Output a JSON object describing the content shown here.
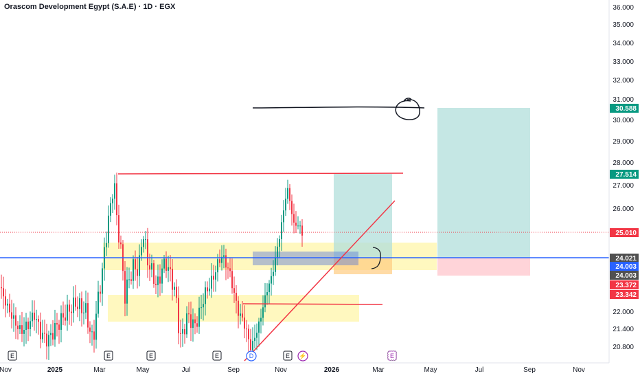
{
  "header": {
    "title": "Orascom Development Egypt (S.A.E) · 1D · EGX"
  },
  "chart_data": {
    "type": "candlestick",
    "title": "Orascom Development Egypt (S.A.E) · 1D · EGX",
    "y_axis": {
      "ticks": [
        {
          "value": 36,
          "label": "36.000"
        },
        {
          "value": 35,
          "label": "35.000"
        },
        {
          "value": 34,
          "label": "34.000"
        },
        {
          "value": 33,
          "label": "33.000"
        },
        {
          "value": 32,
          "label": "32.000"
        },
        {
          "value": 31,
          "label": "31.000"
        },
        {
          "value": 30,
          "label": "30.000"
        },
        {
          "value": 29,
          "label": "29.000"
        },
        {
          "value": 28,
          "label": "28.000"
        },
        {
          "value": 27,
          "label": "27.000"
        },
        {
          "value": 26,
          "label": "26.000"
        },
        {
          "value": 22,
          "label": "22.000"
        },
        {
          "value": 21.4,
          "label": "21.400"
        },
        {
          "value": 20.8,
          "label": "20.800"
        }
      ]
    },
    "x_axis": {
      "ticks": [
        "Nov",
        "2025",
        "Mar",
        "May",
        "Jul",
        "Sep",
        "Nov",
        "2026",
        "Mar",
        "May",
        "Jul",
        "Sep",
        "Nov"
      ]
    },
    "price_badges": [
      {
        "label": "30.588",
        "color": "#089981"
      },
      {
        "label": "27.514",
        "color": "#089981"
      },
      {
        "label": "25.010",
        "color": "#f23645"
      },
      {
        "label": "24.021",
        "color": "#505050"
      },
      {
        "label": "24.003",
        "color": "#2962ff"
      },
      {
        "label": "24.003",
        "color": "#505050"
      },
      {
        "label": "23.372",
        "color": "#f23645"
      },
      {
        "label": "23.342",
        "color": "#f23645"
      }
    ],
    "event_markers": [
      {
        "label": "E"
      },
      {
        "label": "E"
      },
      {
        "label": "E"
      },
      {
        "label": "E"
      },
      {
        "label": "E"
      },
      {
        "label": "D"
      },
      {
        "label": "E"
      },
      {
        "label": "⚡"
      },
      {
        "label": "E"
      }
    ],
    "series": [
      {
        "type": "candles",
        "bull_color": "#089981",
        "bear_color": "#f23645"
      }
    ],
    "colors": {
      "bull": "#089981",
      "bear": "#f23645",
      "line_blue": "#2962ff",
      "zone_yellow": "#fff59d",
      "target_green": "#b2dfdb",
      "stop_red": "#ffcdd2"
    }
  }
}
